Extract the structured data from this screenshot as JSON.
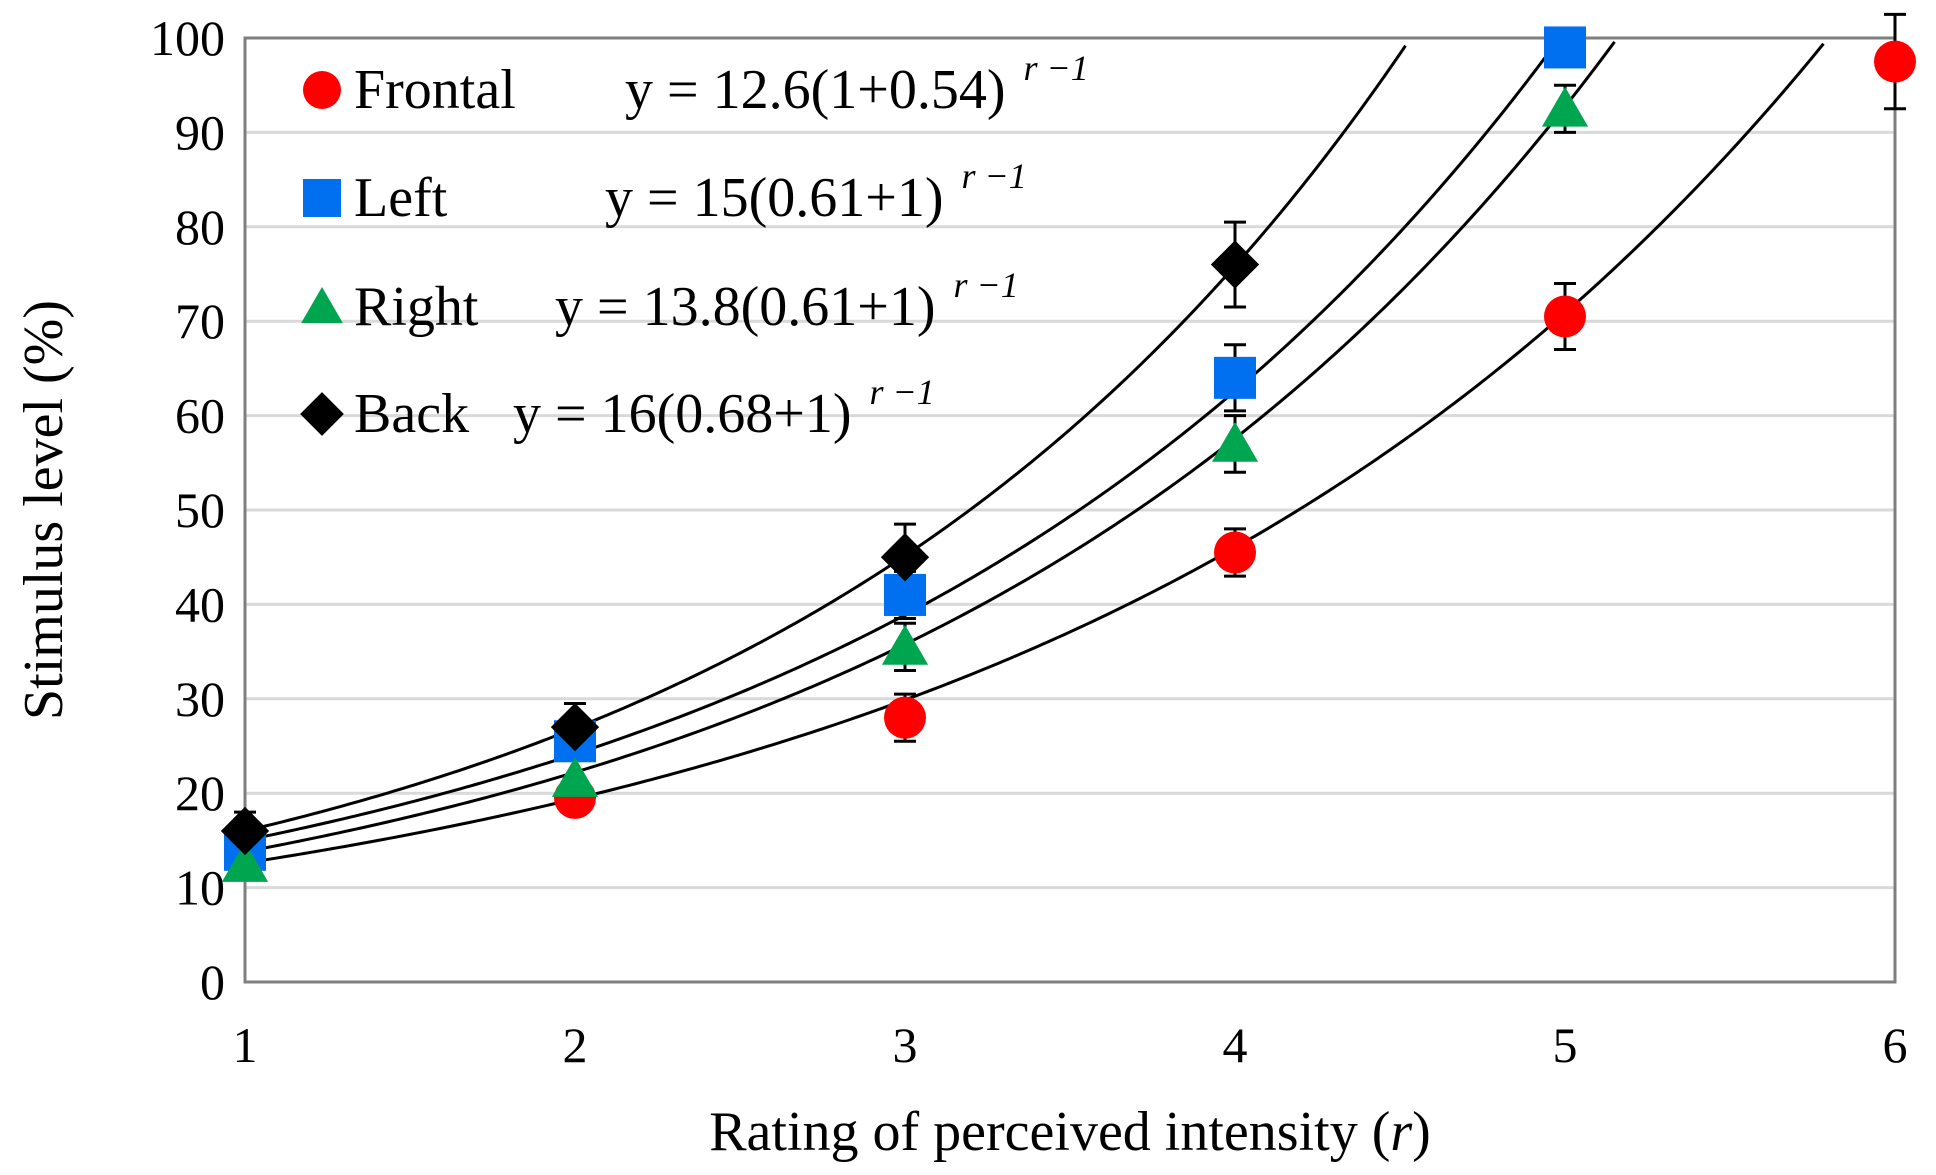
{
  "chart_data": {
    "type": "scatter",
    "title": "",
    "xlabel_prefix": "Rating of perceived intensity (",
    "xlabel_var": "r",
    "xlabel_suffix": ")",
    "ylabel": "Stimulus level (%)",
    "xlim": [
      1,
      6
    ],
    "ylim": [
      0,
      100
    ],
    "xticks": [
      1,
      2,
      3,
      4,
      5,
      6
    ],
    "yticks": [
      0,
      10,
      20,
      30,
      40,
      50,
      60,
      70,
      80,
      90,
      100
    ],
    "grid": "horizontal",
    "legend_position": "top-left",
    "series": [
      {
        "name": "Frontal",
        "marker": "circle",
        "color": "#ff0000",
        "x": [
          1,
          2,
          3,
          4,
          5,
          6
        ],
        "y": [
          13.5,
          19.5,
          28,
          45.5,
          70.5,
          97.5
        ],
        "err": [
          1.5,
          1.5,
          2.5,
          2.5,
          3.5,
          5.0
        ],
        "fit": {
          "a": 12.6,
          "b": 1.54
        },
        "equation": "y = 12.6(1+0.54)",
        "exponent": "r −1"
      },
      {
        "name": "Left",
        "marker": "square",
        "color": "#0070f0",
        "x": [
          1,
          2,
          3,
          4,
          5
        ],
        "y": [
          14,
          25.5,
          41,
          64,
          99
        ],
        "err": [
          1.5,
          2.0,
          2.5,
          3.5,
          2.0
        ],
        "fit": {
          "a": 15,
          "b": 1.61
        },
        "equation": "y = 15(0.61+1)",
        "exponent": "r −1"
      },
      {
        "name": "Right",
        "marker": "triangle",
        "color": "#00a550",
        "x": [
          1,
          2,
          3,
          4,
          5
        ],
        "y": [
          12.5,
          21.5,
          35.5,
          57,
          92.5
        ],
        "err": [
          1.5,
          2.0,
          2.5,
          3.0,
          2.5
        ],
        "fit": {
          "a": 13.8,
          "b": 1.61
        },
        "equation": "y = 13.8(0.61+1)",
        "exponent": "r −1"
      },
      {
        "name": "Back",
        "marker": "diamond",
        "color": "#000000",
        "x": [
          1,
          2,
          3,
          4
        ],
        "y": [
          16,
          27,
          45,
          76
        ],
        "err": [
          2.0,
          2.5,
          3.5,
          4.5
        ],
        "fit": {
          "a": 16,
          "b": 1.68
        },
        "equation": "y = 16(0.68+1)",
        "exponent": "r −1"
      }
    ]
  }
}
